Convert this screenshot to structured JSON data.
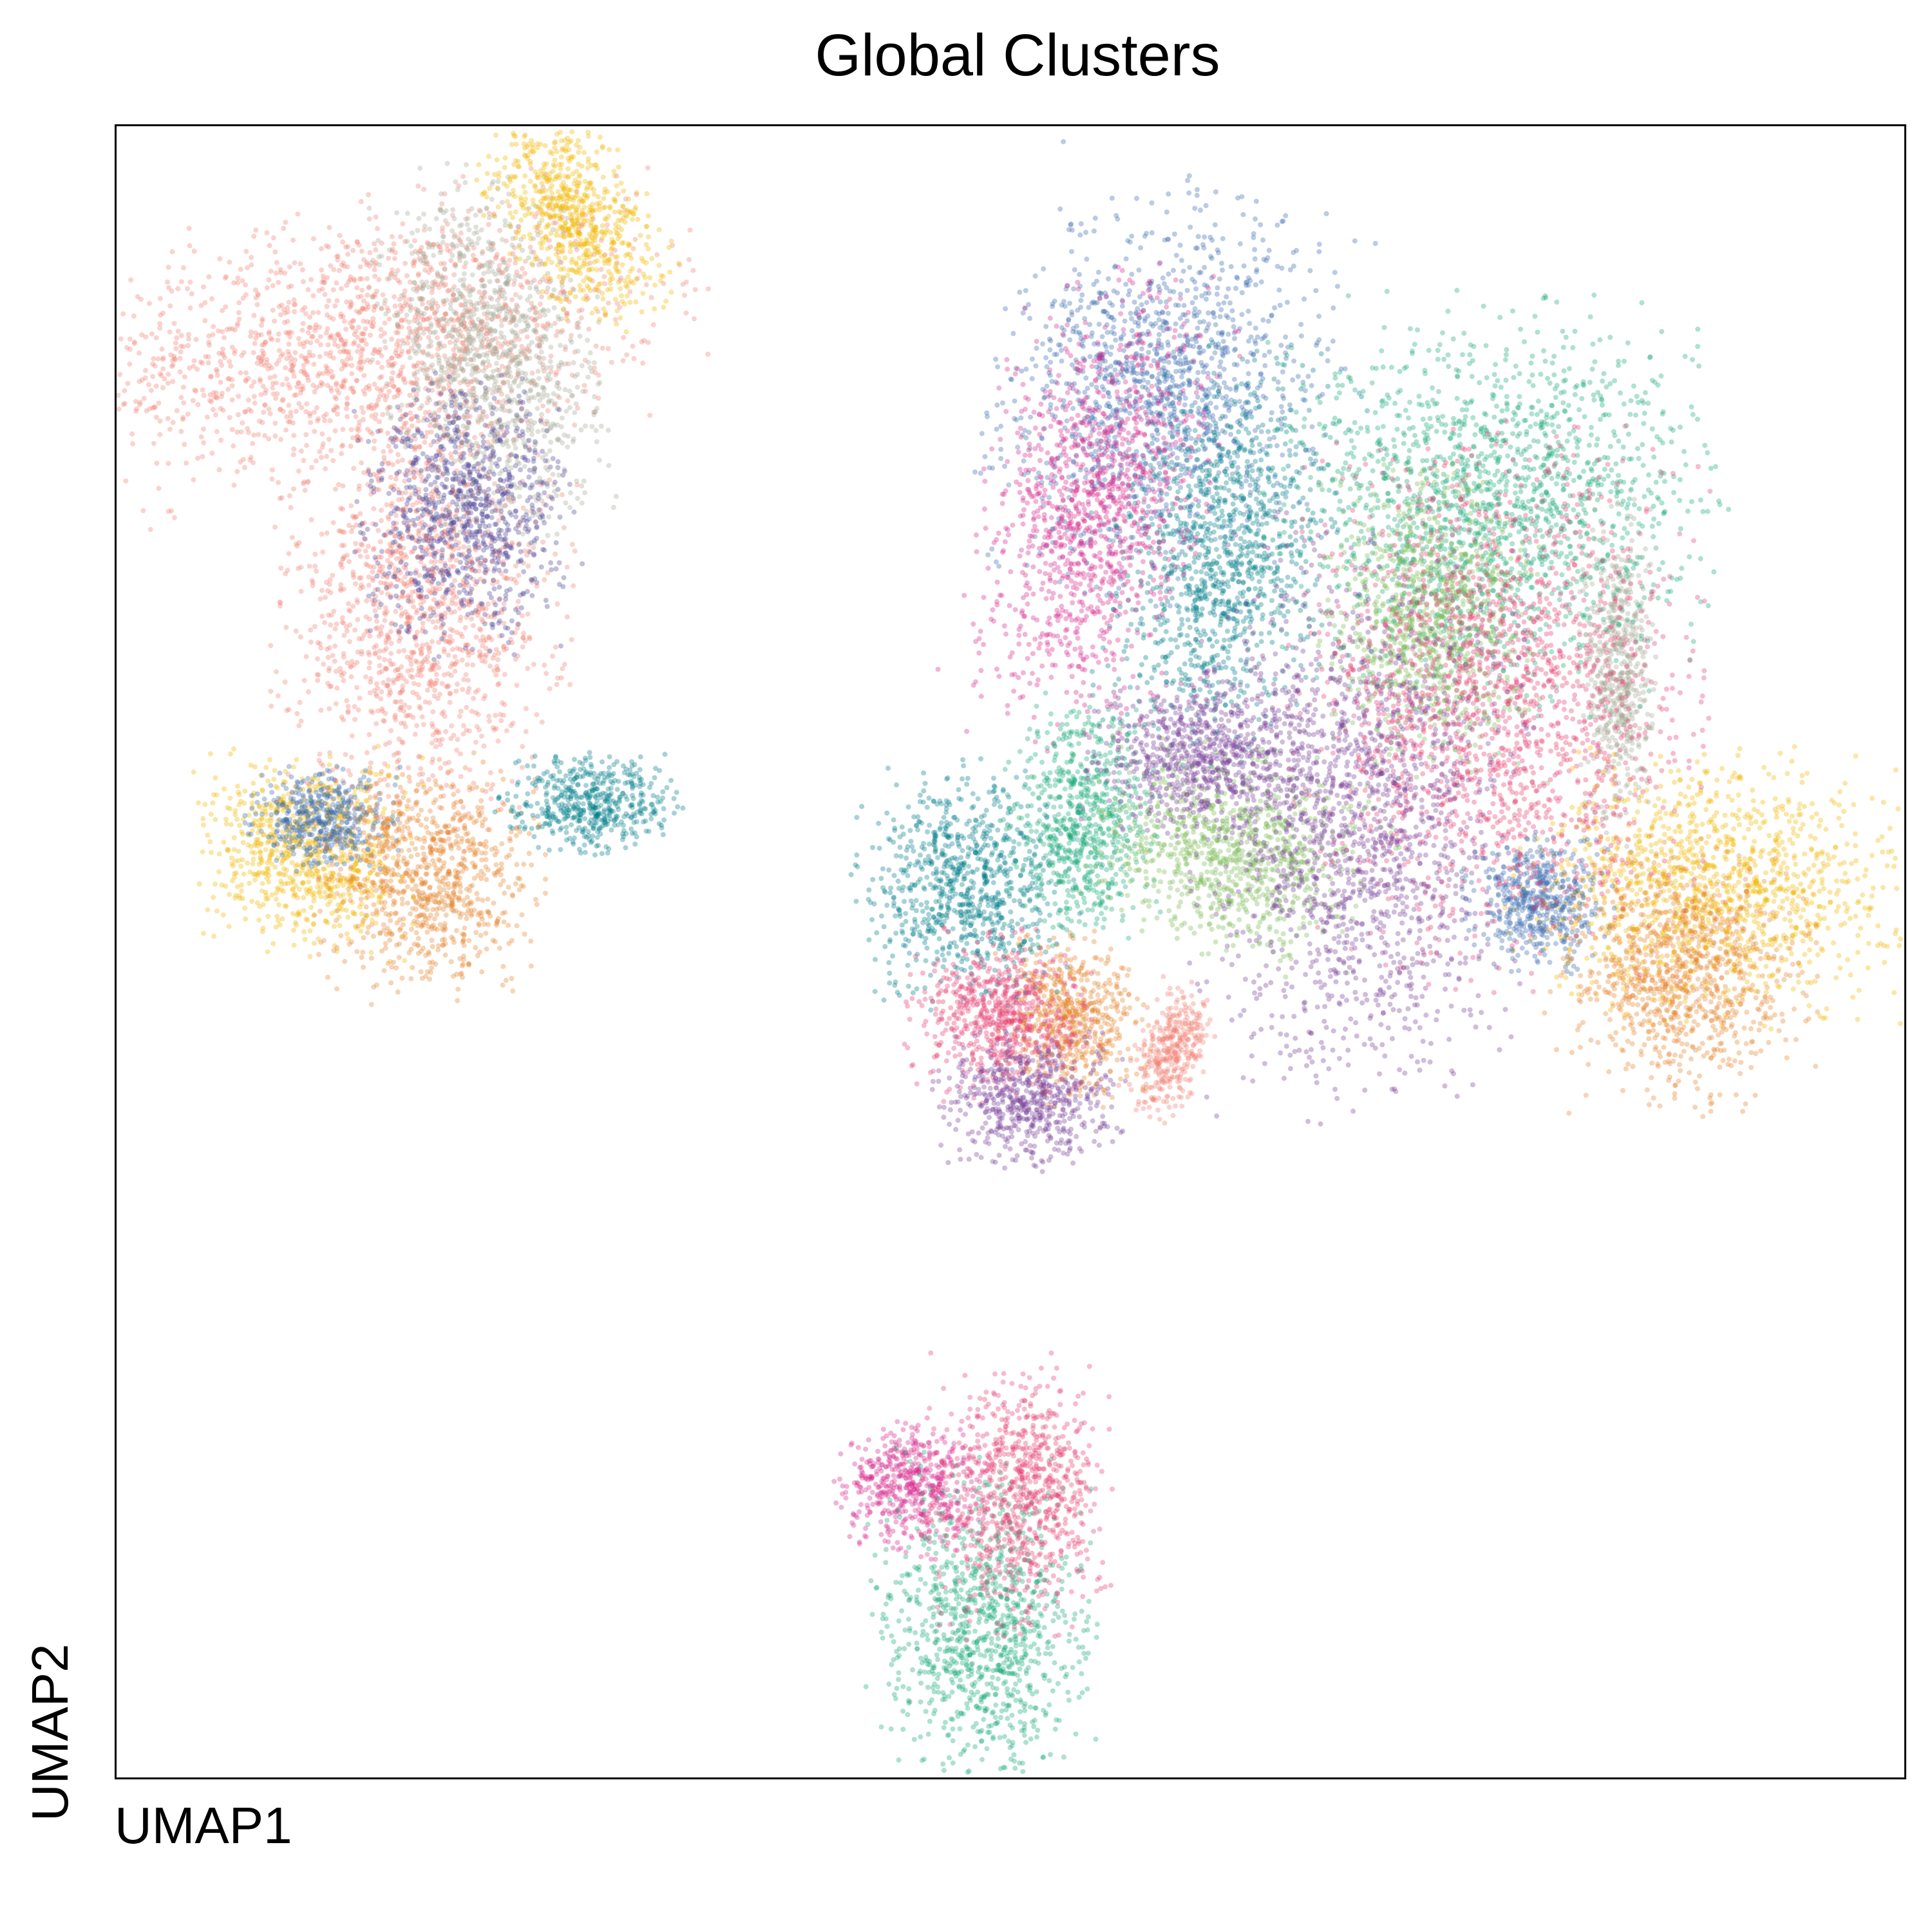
{
  "chart_data": {
    "type": "scatter",
    "title": "Global Clusters",
    "xlabel": "UMAP1",
    "ylabel": "UMAP2",
    "grid": false,
    "legend": "none",
    "xlim": [
      0,
      1
    ],
    "ylim": [
      0,
      1
    ],
    "point_opacity": 0.35,
    "clusters": [
      {
        "color": "#f08072",
        "regions": [
          [
            0.14,
            0.87,
            0.09,
            0.04,
            0.2
          ],
          [
            0.17,
            0.71,
            0.04,
            0.07,
            0.0
          ],
          [
            0.59,
            0.44,
            0.01,
            0.02,
            -0.3
          ]
        ]
      },
      {
        "color": "#a6a894",
        "regions": [
          [
            0.21,
            0.86,
            0.03,
            0.055,
            0.2
          ],
          [
            0.84,
            0.67,
            0.01,
            0.05,
            0.0
          ]
        ]
      },
      {
        "color": "#f2b700",
        "regions": [
          [
            0.255,
            0.945,
            0.02,
            0.035,
            0.5
          ],
          [
            0.108,
            0.56,
            0.03,
            0.03,
            0.0
          ],
          [
            0.895,
            0.54,
            0.055,
            0.04,
            0.0
          ]
        ]
      },
      {
        "color": "#4d4597",
        "regions": [
          [
            0.195,
            0.765,
            0.03,
            0.04,
            0.0
          ]
        ]
      },
      {
        "color": "#3a6aae",
        "regions": [
          [
            0.585,
            0.84,
            0.045,
            0.06,
            -0.3
          ],
          [
            0.115,
            0.58,
            0.02,
            0.015,
            0.0
          ],
          [
            0.795,
            0.53,
            0.02,
            0.02,
            0.0
          ]
        ]
      },
      {
        "color": "#e6842b",
        "regions": [
          [
            0.175,
            0.545,
            0.03,
            0.035,
            0.0
          ],
          [
            0.875,
            0.485,
            0.035,
            0.04,
            0.0
          ],
          [
            0.535,
            0.46,
            0.02,
            0.025,
            0.0
          ]
        ]
      },
      {
        "color": "#007d8a",
        "regions": [
          [
            0.265,
            0.59,
            0.025,
            0.015,
            0.0
          ],
          [
            0.62,
            0.74,
            0.03,
            0.06,
            -0.2
          ],
          [
            0.475,
            0.54,
            0.03,
            0.035,
            0.0
          ]
        ]
      },
      {
        "color": "#d7278b",
        "regions": [
          [
            0.545,
            0.77,
            0.03,
            0.07,
            -0.2
          ],
          [
            0.445,
            0.175,
            0.02,
            0.02,
            0.0
          ]
        ]
      },
      {
        "color": "#16a877",
        "regions": [
          [
            0.77,
            0.77,
            0.06,
            0.06,
            0.0
          ],
          [
            0.54,
            0.58,
            0.02,
            0.035,
            0.0
          ],
          [
            0.485,
            0.09,
            0.03,
            0.05,
            0.0
          ]
        ]
      },
      {
        "color": "#7ab955",
        "regions": [
          [
            0.625,
            0.56,
            0.04,
            0.03,
            -0.3
          ],
          [
            0.735,
            0.7,
            0.03,
            0.045,
            0.0
          ]
        ]
      },
      {
        "color": "#e63e73",
        "regions": [
          [
            0.775,
            0.65,
            0.055,
            0.08,
            0.0
          ],
          [
            0.495,
            0.46,
            0.025,
            0.025,
            0.0
          ],
          [
            0.505,
            0.17,
            0.025,
            0.04,
            0.0
          ]
        ]
      },
      {
        "color": "#774098",
        "regions": [
          [
            0.695,
            0.58,
            0.045,
            0.085,
            0.0
          ],
          [
            0.605,
            0.62,
            0.03,
            0.025,
            0.0
          ],
          [
            0.51,
            0.41,
            0.025,
            0.02,
            0.0
          ]
        ]
      }
    ]
  }
}
